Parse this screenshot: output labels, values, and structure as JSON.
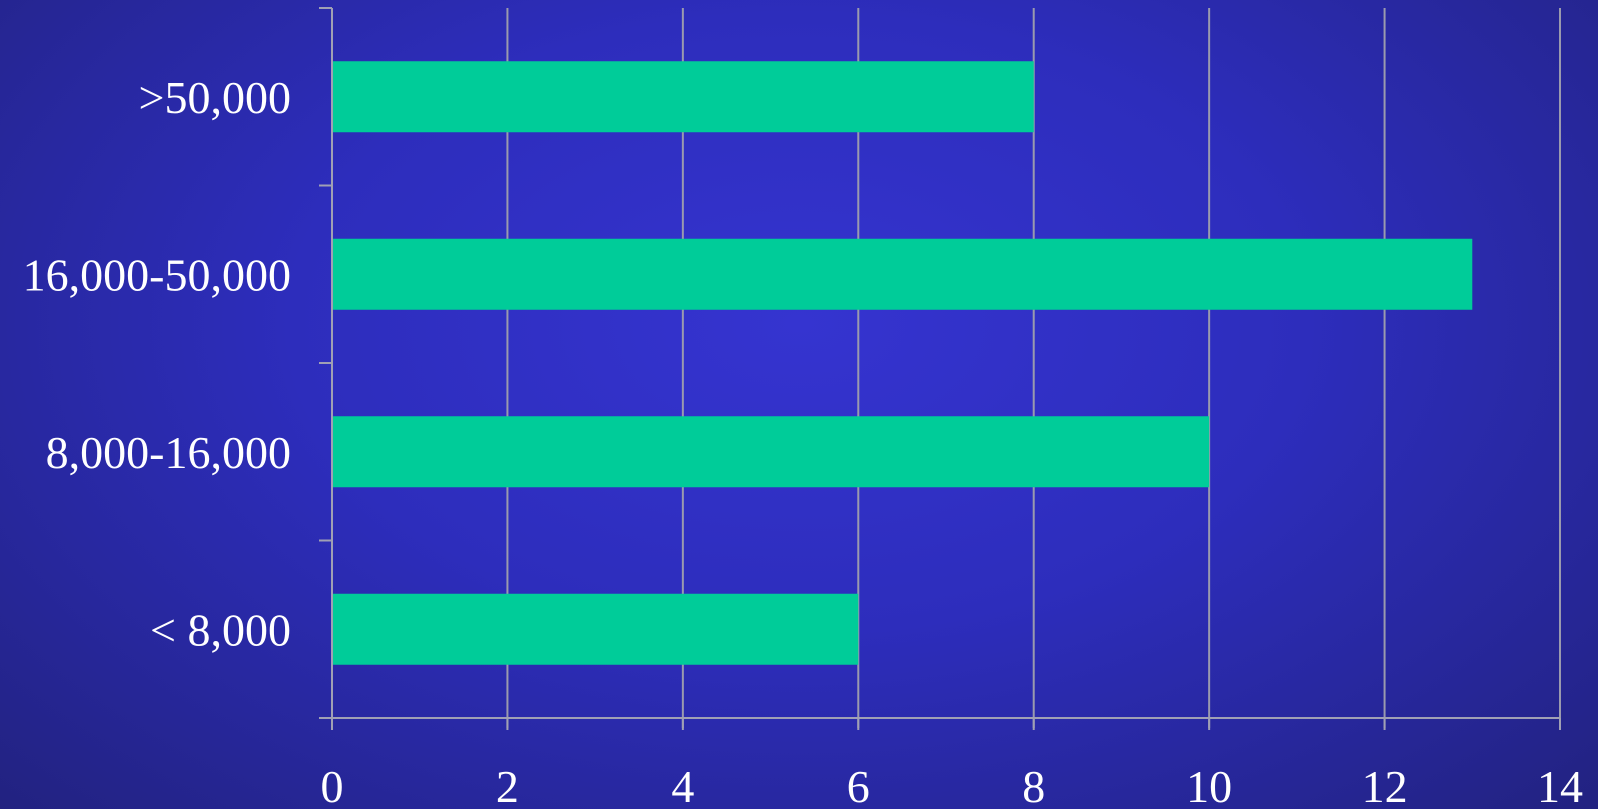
{
  "chart_data": {
    "type": "bar",
    "orientation": "horizontal",
    "title": "",
    "xlabel": "",
    "ylabel": "",
    "categories": [
      "< 8,000",
      "8,000-16,000",
      "16,000-50,000",
      ">50,000"
    ],
    "values": [
      6,
      10,
      13,
      8
    ],
    "xlim": [
      0,
      14
    ],
    "x_ticks": [
      0,
      2,
      4,
      6,
      8,
      10,
      12,
      14
    ],
    "grid": "vertical",
    "legend": "none",
    "colors": {
      "bar": "#00cc99",
      "text": "#ffffff",
      "grid": "#9a9aae"
    }
  }
}
